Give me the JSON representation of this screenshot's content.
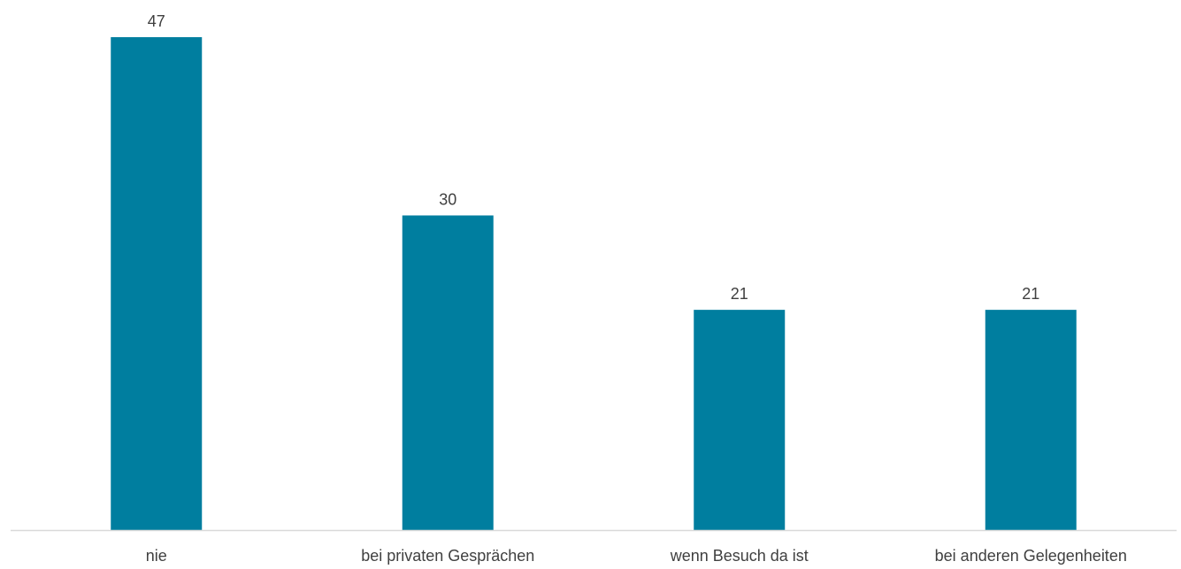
{
  "chart_data": {
    "type": "bar",
    "categories": [
      "nie",
      "bei privaten Gesprächen",
      "wenn Besuch da ist",
      "bei anderen Gelegenheiten"
    ],
    "values": [
      47,
      30,
      21,
      21
    ],
    "title": "",
    "xlabel": "",
    "ylabel": "",
    "ylim": [
      0,
      50
    ],
    "grid": false,
    "legend": "none",
    "bar_color": "#007E9F",
    "axis_color": "#D9D9D9",
    "text_color": "#404040"
  }
}
